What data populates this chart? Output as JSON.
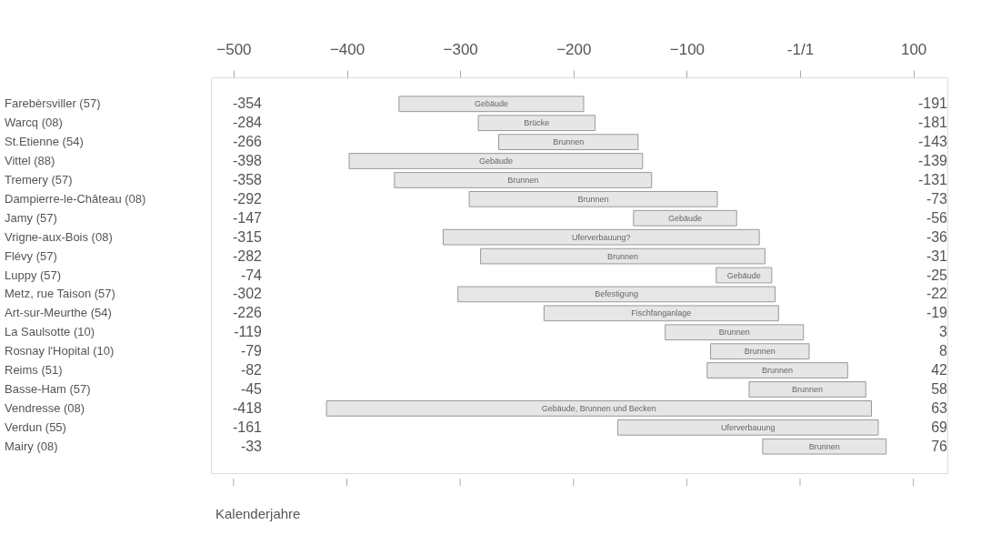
{
  "chart_data": {
    "type": "bar",
    "orientation": "horizontal",
    "xlabel": "Kalenderjahre",
    "categories": [
      "Farebèrsviller (57)",
      "Warcq (08)",
      "St.Etienne (54)",
      "Vittel (88)",
      "Tremery (57)",
      "Dampierre-le-Château (08)",
      "Jamy (57)",
      "Vrigne-aux-Bois (08)",
      "Flévy (57)",
      "Luppy (57)",
      "Metz, rue Taison (57)",
      "Art-sur-Meurthe (54)",
      "La Saulsotte (10)",
      "Rosnay l'Hopital (10)",
      "Reims (51)",
      "Basse-Ham (57)",
      "Vendresse (08)",
      "Verdun (55)",
      "Mairy (08)"
    ],
    "base": [
      -354,
      -284,
      -266,
      -398,
      -358,
      -292,
      -147,
      -315,
      -282,
      -74,
      -302,
      -226,
      -119,
      -79,
      -82,
      -45,
      -418,
      -161,
      -33
    ],
    "values": [
      163,
      103,
      123,
      259,
      227,
      219,
      91,
      279,
      251,
      49,
      280,
      207,
      122,
      87,
      124,
      103,
      481,
      230,
      109
    ],
    "color": "#e6e6e6",
    "xlim": [
      -520,
      130
    ],
    "xticks": [
      -500,
      -400,
      -300,
      -200,
      -100,
      {
        "value": 0,
        "label": "-1/1"
      },
      100
    ],
    "annotations": [
      "Gebäude",
      "Brücke",
      "Brunnen",
      "Gebäude",
      "Brunnen",
      "Brunnen",
      "Gebäude",
      "Uferverbauung?",
      "Brunnen",
      "Gebäude",
      "Befestigung",
      "Fischfanganlage",
      "Brunnen",
      "Brunnen",
      "Brunnen",
      "Brunnen",
      "Gebäude, Brunnen und Becken",
      "Uferverbauung",
      "Brunnen",
      "-354",
      "-284",
      "-266",
      "-398",
      "-358",
      "-292",
      "-147",
      "-315",
      "-282",
      "-74",
      "-302",
      "-226",
      "-119",
      "-79",
      "-82",
      "-45",
      "-418",
      "-161",
      "-33",
      "-191",
      "-181",
      "-143",
      "-139",
      "-131",
      "-73",
      "-56",
      "-36",
      "-31",
      "-25",
      "-22",
      "-19",
      "3",
      "8",
      "42",
      "58",
      "63",
      "69",
      "76"
    ]
  }
}
